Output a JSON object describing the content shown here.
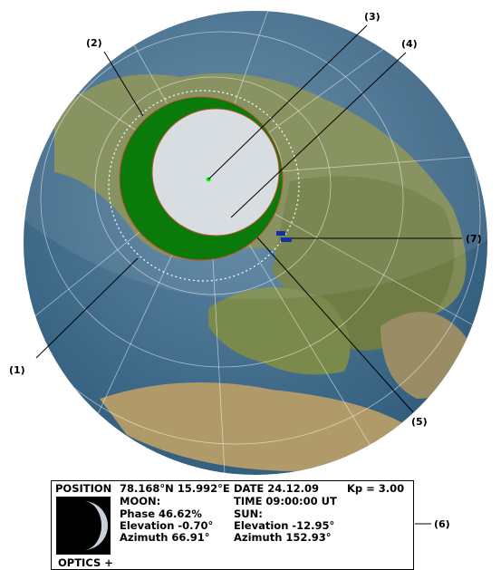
{
  "callouts": [
    "(1)",
    "(2)",
    "(3)",
    "(4)",
    "(5)",
    "(6)",
    "(7)"
  ],
  "panel": {
    "position_label": "POSITION",
    "position_value": "78.168°N 15.992°E",
    "date": "DATE 24.12.09",
    "kp": "Kp = 3.00",
    "moon_header": "MOON:",
    "moon_phase": "Phase  46.62%",
    "moon_elevation": "Elevation  -0.70°",
    "moon_azimuth": "Azimuth  66.91°",
    "time": "TIME 09:00:00 UT",
    "sun_header": "SUN:",
    "sun_elevation": "Elevation -12.95°",
    "sun_azimuth": "Azimuth 152.93°",
    "optics": "OPTICS +"
  }
}
